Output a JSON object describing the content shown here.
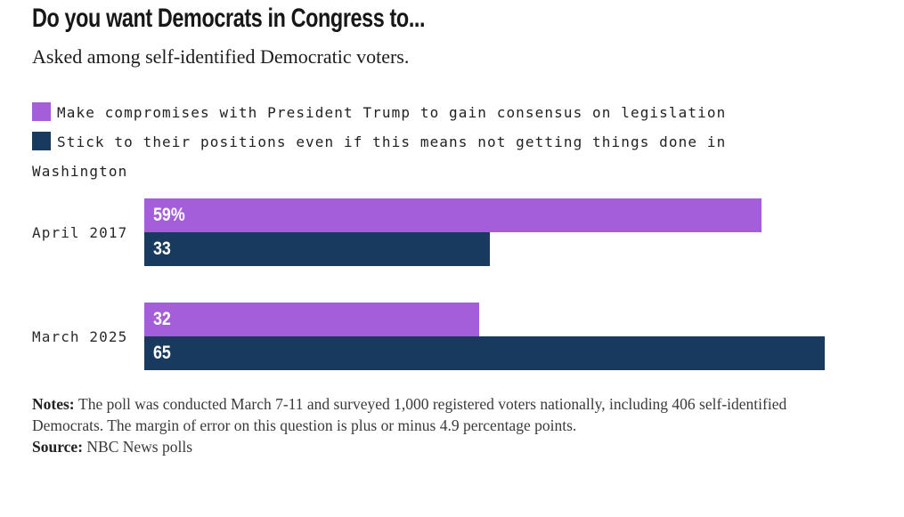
{
  "header": {
    "title": "Do you want Democrats in Congress to...",
    "subtitle": "Asked among self-identified Democratic voters."
  },
  "colors": {
    "compromise_purple": "#a45fd8",
    "stick_navy": "#173a5e"
  },
  "chart_data": {
    "type": "bar",
    "orientation": "horizontal",
    "title": "Do you want Democrats in Congress to...",
    "subtitle": "Asked among self-identified Democratic voters.",
    "categories": [
      "April 2017",
      "March 2025"
    ],
    "series": [
      {
        "name": "Make compromises with President Trump to gain consensus on legislation",
        "color": "#a45fd8",
        "values": [
          59,
          32
        ]
      },
      {
        "name": "Stick to their positions even if this means not getting things done in Washington",
        "color": "#173a5e",
        "values": [
          33,
          65
        ]
      }
    ],
    "value_labels": [
      [
        "59%",
        "33"
      ],
      [
        "32",
        "65"
      ]
    ],
    "unit": "percent",
    "axis": {
      "min": 0,
      "gridlines": false,
      "tick_labels": "none"
    },
    "legend_position": "top-left"
  },
  "notes": {
    "notes_label": "Notes:",
    "notes_text": "The poll was conducted March 7-11 and surveyed 1,000 registered voters nationally, including 406 self-identified Democrats. The margin of error on this question is plus or minus 4.9 percentage points.",
    "source_label": "Source:",
    "source_text": "NBC News polls"
  }
}
